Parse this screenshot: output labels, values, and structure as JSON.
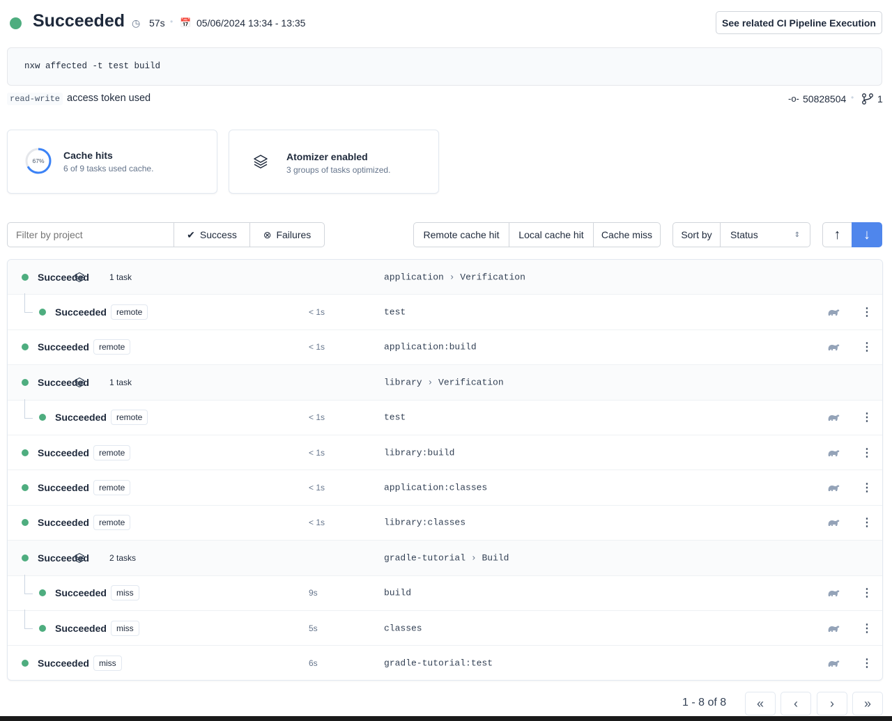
{
  "header": {
    "status": "Succeeded",
    "duration": "57s",
    "date_range": "05/06/2024 13:34 - 13:35",
    "related_button": "See related CI Pipeline Execution",
    "status_color": "#4ead7f"
  },
  "command": "nxw affected -t test build",
  "token": {
    "type": "read-write",
    "text": "access token used"
  },
  "meta": {
    "commit": "50828504",
    "branches": "1"
  },
  "cards": {
    "cache": {
      "title": "Cache hits",
      "subtitle": "6 of 9 tasks used cache.",
      "percent_label": "67%",
      "percent": 67
    },
    "atomizer": {
      "title": "Atomizer enabled",
      "subtitle": "3 groups of tasks optimized."
    }
  },
  "filters": {
    "placeholder": "Filter by project",
    "success": "Success",
    "failures": "Failures",
    "remote": "Remote cache hit",
    "local": "Local cache hit",
    "miss": "Cache miss",
    "sort_label": "Sort by",
    "sort_value": "Status"
  },
  "rows": [
    {
      "status": "Succeeded",
      "group": true,
      "tasks": "1 task",
      "project": "application",
      "target": "Verification"
    },
    {
      "status": "Succeeded",
      "child": true,
      "cache": "remote",
      "duration": "< 1s",
      "name": "test"
    },
    {
      "status": "Succeeded",
      "cache": "remote",
      "duration": "< 1s",
      "name": "application:build"
    },
    {
      "status": "Succeeded",
      "group": true,
      "tasks": "1 task",
      "project": "library",
      "target": "Verification"
    },
    {
      "status": "Succeeded",
      "child": true,
      "cache": "remote",
      "duration": "< 1s",
      "name": "test"
    },
    {
      "status": "Succeeded",
      "cache": "remote",
      "duration": "< 1s",
      "name": "library:build"
    },
    {
      "status": "Succeeded",
      "cache": "remote",
      "duration": "< 1s",
      "name": "application:classes"
    },
    {
      "status": "Succeeded",
      "cache": "remote",
      "duration": "< 1s",
      "name": "library:classes"
    },
    {
      "status": "Succeeded",
      "group": true,
      "tasks": "2 tasks",
      "project": "gradle-tutorial",
      "target": "Build"
    },
    {
      "status": "Succeeded",
      "child": true,
      "cache": "miss",
      "duration": "9s",
      "name": "build"
    },
    {
      "status": "Succeeded",
      "child": true,
      "cache": "miss",
      "duration": "5s",
      "name": "classes"
    },
    {
      "status": "Succeeded",
      "cache": "miss",
      "duration": "6s",
      "name": "gradle-tutorial:test"
    }
  ],
  "pagination": {
    "label": "1 - 8 of 8"
  }
}
